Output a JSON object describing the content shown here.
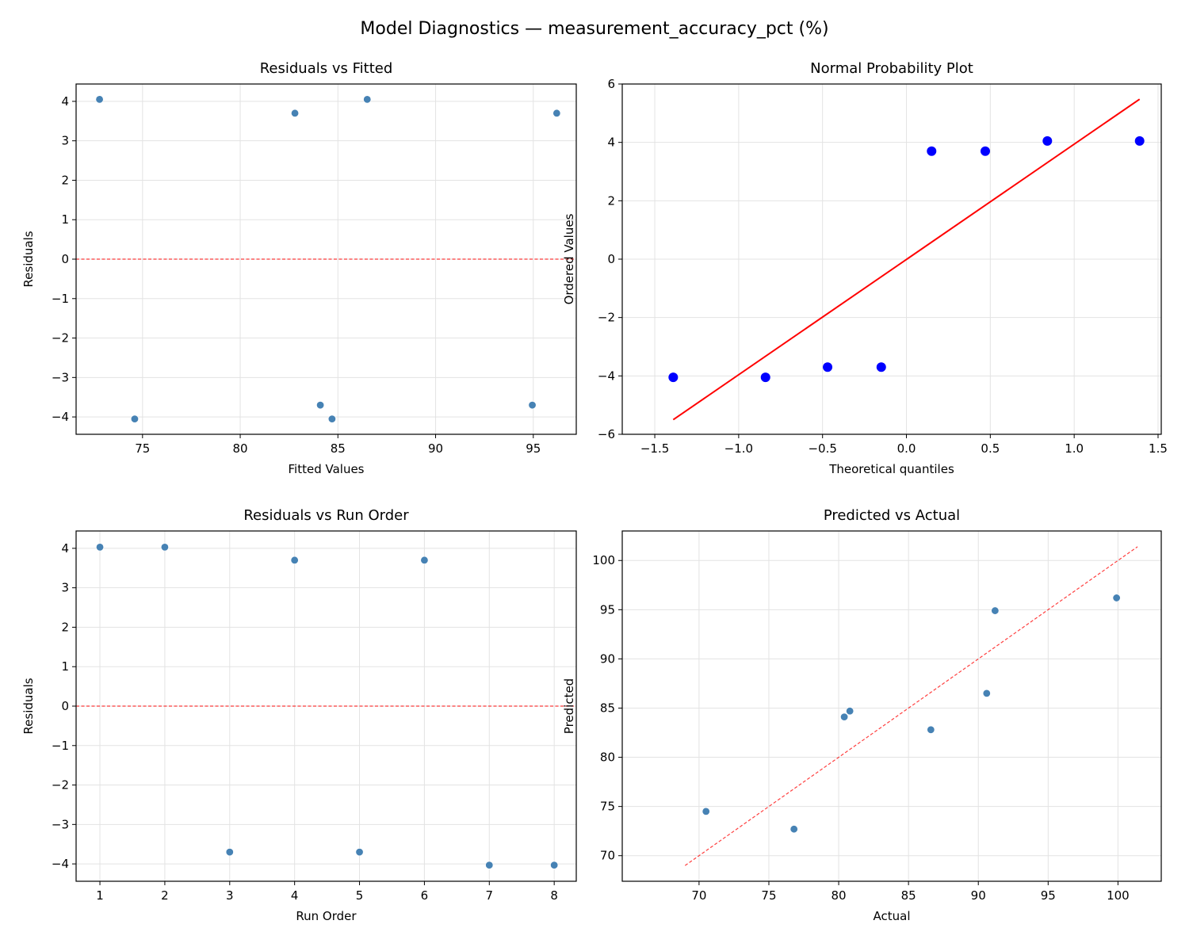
{
  "suptitle": "Model Diagnostics — measurement_accuracy_pct (%)",
  "chart_data": [
    {
      "type": "scatter",
      "title": "Residuals vs Fitted",
      "xlabel": "Fitted Values",
      "ylabel": "Residuals",
      "xlim": [
        71.6,
        97.2
      ],
      "ylim": [
        -4.44,
        4.44
      ],
      "xticks": [
        75,
        80,
        85,
        90,
        95
      ],
      "xtick_labels": [
        "75",
        "80",
        "85",
        "90",
        "95"
      ],
      "yticks": [
        -4,
        -3,
        -2,
        -1,
        0,
        1,
        2,
        3,
        4
      ],
      "ytick_labels": [
        "−4",
        "−3",
        "−2",
        "−1",
        "0",
        "1",
        "2",
        "3",
        "4"
      ],
      "grid": true,
      "marker_color": "#4682b4",
      "x": [
        72.8,
        74.6,
        82.8,
        84.1,
        84.7,
        86.5,
        94.95,
        96.2
      ],
      "y": [
        4.05,
        -4.05,
        3.7,
        -3.7,
        -4.05,
        4.05,
        -3.7,
        3.7
      ],
      "reference_line": {
        "kind": "horizontal",
        "y": 0,
        "color": "#ff0000",
        "style": "dashed"
      }
    },
    {
      "type": "scatter",
      "title": "Normal Probability Plot",
      "xlabel": "Theoretical quantiles",
      "ylabel": "Ordered Values",
      "xlim": [
        -1.694,
        1.519
      ],
      "ylim": [
        -6,
        6
      ],
      "xticks": [
        -1.5,
        -1.0,
        -0.5,
        0.0,
        0.5,
        1.0,
        1.5
      ],
      "xtick_labels": [
        "−1.5",
        "−1.0",
        "−0.5",
        "0.0",
        "0.5",
        "1.0",
        "1.5"
      ],
      "yticks": [
        -6,
        -4,
        -2,
        0,
        2,
        4,
        6
      ],
      "ytick_labels": [
        "−6",
        "−4",
        "−2",
        "0",
        "2",
        "4",
        "6"
      ],
      "grid": true,
      "marker_color": "#0000ff",
      "x": [
        -1.39,
        -0.84,
        -0.47,
        -0.15,
        0.15,
        0.47,
        0.84,
        1.39
      ],
      "y": [
        -4.05,
        -4.05,
        -3.7,
        -3.7,
        3.7,
        3.7,
        4.05,
        4.05
      ],
      "reference_line": {
        "kind": "fit",
        "x": [
          -1.39,
          1.39
        ],
        "y": [
          -5.5,
          5.48
        ],
        "color": "#ff0000",
        "style": "solid"
      }
    },
    {
      "type": "scatter",
      "title": "Residuals vs Run Order",
      "xlabel": "Run Order",
      "ylabel": "Residuals",
      "xlim": [
        0.633,
        8.34
      ],
      "ylim": [
        -4.44,
        4.44
      ],
      "xticks": [
        1,
        2,
        3,
        4,
        5,
        6,
        7,
        8
      ],
      "xtick_labels": [
        "1",
        "2",
        "3",
        "4",
        "5",
        "6",
        "7",
        "8"
      ],
      "yticks": [
        -4,
        -3,
        -2,
        -1,
        0,
        1,
        2,
        3,
        4
      ],
      "ytick_labels": [
        "−4",
        "−3",
        "−2",
        "−1",
        "0",
        "1",
        "2",
        "3",
        "4"
      ],
      "grid": true,
      "marker_color": "#4682b4",
      "x": [
        1,
        2,
        3,
        4,
        5,
        6,
        7,
        8
      ],
      "y": [
        4.03,
        4.03,
        -3.7,
        3.7,
        -3.7,
        3.7,
        -4.03,
        -4.03
      ],
      "reference_line": {
        "kind": "horizontal",
        "y": 0,
        "color": "#ff0000",
        "style": "dashed"
      }
    },
    {
      "type": "scatter",
      "title": "Predicted vs Actual",
      "xlabel": "Actual",
      "ylabel": "Predicted",
      "xlim": [
        64.5,
        103.1
      ],
      "ylim": [
        67.4,
        103.0
      ],
      "xticks": [
        70,
        75,
        80,
        85,
        90,
        95,
        100
      ],
      "xtick_labels": [
        "70",
        "75",
        "80",
        "85",
        "90",
        "95",
        "100"
      ],
      "yticks": [
        70,
        75,
        80,
        85,
        90,
        95,
        100
      ],
      "ytick_labels": [
        "70",
        "75",
        "80",
        "85",
        "90",
        "95",
        "100"
      ],
      "grid": true,
      "marker_color": "#4682b4",
      "x": [
        70.5,
        76.8,
        80.4,
        80.8,
        86.6,
        90.6,
        91.2,
        99.9
      ],
      "y": [
        74.5,
        72.7,
        84.1,
        84.7,
        82.8,
        86.5,
        94.9,
        96.2
      ],
      "reference_line": {
        "kind": "identity",
        "x": [
          69.0,
          101.4
        ],
        "y": [
          69.0,
          101.4
        ],
        "color": "#ff0000",
        "style": "dashed"
      }
    }
  ]
}
